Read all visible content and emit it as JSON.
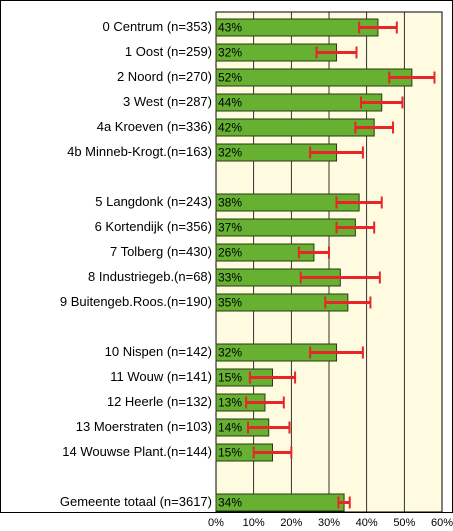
{
  "chart_data": {
    "type": "bar",
    "orientation": "horizontal",
    "categories": [
      "0 Centrum (n=353)",
      "1 Oost (n=259)",
      "2 Noord (n=270)",
      "3 West (n=287)",
      "4a Kroeven (n=336)",
      "4b Minneb-Krogt.(n=163)",
      null,
      "5 Langdonk (n=243)",
      "6 Kortendijk (n=356)",
      "7 Tolberg (n=430)",
      "8 Industriegeb.(n=68)",
      "9 Buitengeb.Roos.(n=190)",
      null,
      "10 Nispen (n=142)",
      "11 Wouw (n=141)",
      "12 Heerle (n=132)",
      "13 Moerstraten (n=103)",
      "14 Wouwse Plant.(n=144)",
      null,
      "Gemeente totaal (n=3617)"
    ],
    "values": [
      43,
      32,
      52,
      44,
      42,
      32,
      null,
      38,
      37,
      26,
      33,
      35,
      null,
      32,
      15,
      13,
      14,
      15,
      null,
      34
    ],
    "value_labels": [
      "43%",
      "32%",
      "52%",
      "44%",
      "42%",
      "32%",
      null,
      "38%",
      "37%",
      "26%",
      "33%",
      "35%",
      null,
      "32%",
      "15%",
      "13%",
      "14%",
      "15%",
      null,
      "34%"
    ],
    "errors": [
      5,
      5.3,
      6,
      5.5,
      5,
      7,
      null,
      6,
      5,
      4,
      10.5,
      6,
      null,
      7,
      6,
      5,
      5.5,
      5,
      null,
      1.5
    ],
    "color": "#66b032",
    "error_color": "#e8262a",
    "background": "#fffbe0",
    "xlim": [
      0,
      60
    ],
    "xticks": [
      {
        "value": 0,
        "label": "0%"
      },
      {
        "value": 10,
        "label": "10%"
      },
      {
        "value": 20,
        "label": "20%"
      },
      {
        "value": 30,
        "label": "30%"
      },
      {
        "value": 40,
        "label": "40%"
      },
      {
        "value": 50,
        "label": "50%"
      },
      {
        "value": 60,
        "label": "60%"
      }
    ],
    "grid": true
  }
}
